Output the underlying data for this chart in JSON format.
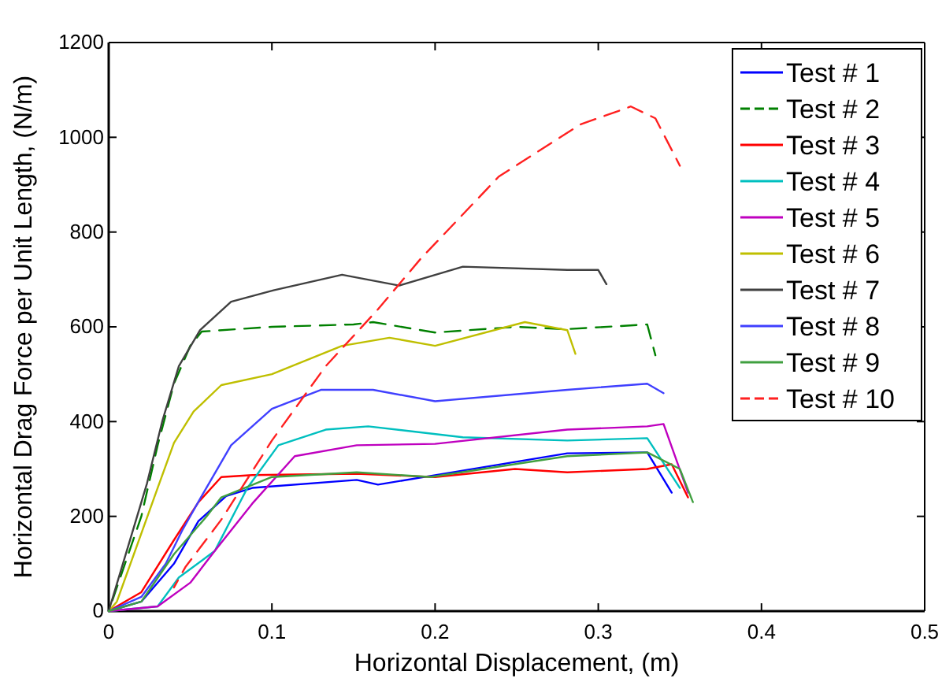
{
  "chart_data": {
    "type": "line",
    "xlabel": "Horizontal Displacement, (m)",
    "ylabel": "Horizontal Drag Force per Unit Length, (N/m)",
    "xlim": [
      0,
      0.5
    ],
    "xticks": [
      0,
      0.1,
      0.2,
      0.3,
      0.4,
      0.5
    ],
    "ylim": [
      0,
      1200
    ],
    "yticks": [
      0,
      200,
      400,
      600,
      800,
      1000,
      1200
    ],
    "grid": false,
    "legend": "top right",
    "marker": "none",
    "series": [
      {
        "name": "Test # 1",
        "color": "#0000ff",
        "x": [
          0,
          0.02,
          0.04,
          0.055,
          0.072,
          0.088,
          0.152,
          0.165,
          0.2,
          0.281,
          0.33,
          0.345
        ],
        "values": [
          0,
          20,
          100,
          190,
          243,
          260,
          277,
          267,
          287,
          333,
          335,
          250
        ]
      },
      {
        "name": "Test # 2",
        "color": "#008000",
        "line_style": "dashed",
        "x": [
          0,
          0.02,
          0.03,
          0.04,
          0.05,
          0.057,
          0.1,
          0.15,
          0.162,
          0.2,
          0.25,
          0.28,
          0.33,
          0.335
        ],
        "values": [
          0,
          200,
          350,
          480,
          560,
          590,
          600,
          605,
          610,
          588,
          600,
          595,
          605,
          540
        ]
      },
      {
        "name": "Test # 3",
        "color": "#ff0000",
        "x": [
          0,
          0.02,
          0.04,
          0.055,
          0.069,
          0.088,
          0.152,
          0.2,
          0.249,
          0.281,
          0.33,
          0.345,
          0.355
        ],
        "values": [
          0,
          40,
          150,
          230,
          283,
          287,
          290,
          283,
          300,
          293,
          300,
          310,
          240
        ]
      },
      {
        "name": "Test # 4",
        "color": "#00bfbf",
        "x": [
          0,
          0.03,
          0.043,
          0.065,
          0.085,
          0.104,
          0.133,
          0.159,
          0.217,
          0.281,
          0.33,
          0.35
        ],
        "values": [
          0,
          10,
          71,
          127,
          260,
          350,
          383,
          390,
          367,
          360,
          365,
          260
        ]
      },
      {
        "name": "Test # 5",
        "color": "#bf00bf",
        "x": [
          0,
          0.03,
          0.05,
          0.065,
          0.088,
          0.114,
          0.152,
          0.2,
          0.281,
          0.33,
          0.34,
          0.355
        ],
        "values": [
          0,
          10,
          60,
          127,
          227,
          327,
          350,
          353,
          383,
          390,
          395,
          250
        ]
      },
      {
        "name": "Test # 6",
        "color": "#bfbf00",
        "x": [
          0,
          0.005,
          0.03,
          0.04,
          0.052,
          0.069,
          0.1,
          0.143,
          0.172,
          0.2,
          0.255,
          0.281,
          0.286
        ],
        "values": [
          0,
          20,
          260,
          355,
          421,
          477,
          500,
          560,
          577,
          560,
          610,
          593,
          543
        ]
      },
      {
        "name": "Test # 7",
        "color": "#404040",
        "x": [
          0,
          0.0235,
          0.033,
          0.043,
          0.056,
          0.075,
          0.101,
          0.143,
          0.178,
          0.217,
          0.281,
          0.3,
          0.305
        ],
        "values": [
          0,
          270,
          403,
          517,
          593,
          653,
          677,
          710,
          687,
          727,
          720,
          720,
          690
        ]
      },
      {
        "name": "Test # 8",
        "color": "#4040ff",
        "x": [
          0,
          0.02,
          0.035,
          0.045,
          0.056,
          0.075,
          0.1,
          0.13,
          0.162,
          0.2,
          0.281,
          0.33,
          0.34
        ],
        "values": [
          0,
          30,
          100,
          170,
          237,
          350,
          427,
          467,
          467,
          443,
          467,
          480,
          460
        ]
      },
      {
        "name": "Test # 9",
        "color": "#40a040",
        "x": [
          0,
          0.02,
          0.04,
          0.06,
          0.069,
          0.1,
          0.152,
          0.197,
          0.281,
          0.33,
          0.35,
          0.358
        ],
        "values": [
          0,
          20,
          120,
          200,
          240,
          283,
          293,
          283,
          327,
          335,
          300,
          230
        ]
      },
      {
        "name": "Test # 10",
        "color": "#ff2020",
        "line_style": "dashed",
        "x": [
          0.04,
          0.047,
          0.069,
          0.1,
          0.133,
          0.165,
          0.191,
          0.239,
          0.289,
          0.32,
          0.335,
          0.35
        ],
        "values": [
          50,
          93,
          193,
          360,
          517,
          637,
          743,
          917,
          1027,
          1065,
          1040,
          940
        ]
      }
    ]
  }
}
